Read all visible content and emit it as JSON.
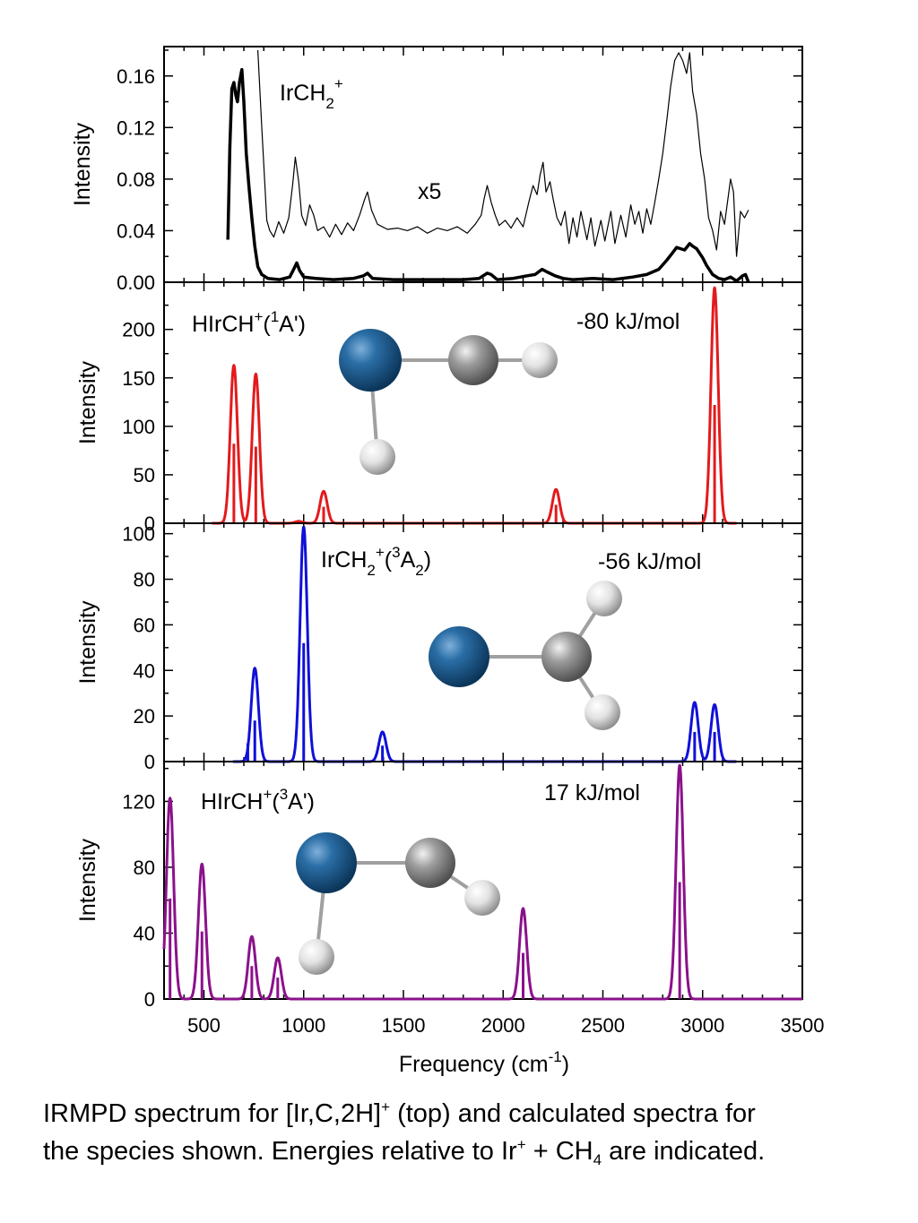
{
  "colors": {
    "top": "#000000",
    "p2": "#e31a1c",
    "p3": "#1010d8",
    "p4": "#8b118b",
    "ir": "#1b5c8f",
    "c": "#8c8c8c",
    "h": "#e6e6e6"
  },
  "chart_data": [
    {
      "type": "line",
      "panel": "top",
      "ylabel": "Intensity",
      "ylim": [
        0,
        0.18
      ],
      "yticks": [
        "0.00",
        "0.04",
        "0.08",
        "0.12",
        "0.16"
      ],
      "xlim": [
        300,
        3500
      ],
      "label": {
        "pre": "IrCH",
        "sub": "2",
        "sup": "+"
      },
      "x5_label": "x5",
      "series": [
        {
          "role": "spectrum",
          "points": [
            [
              620,
              0.033
            ],
            [
              630,
              0.105
            ],
            [
              640,
              0.15
            ],
            [
              650,
              0.155
            ],
            [
              660,
              0.145
            ],
            [
              668,
              0.14
            ],
            [
              678,
              0.155
            ],
            [
              690,
              0.165
            ],
            [
              700,
              0.14
            ],
            [
              712,
              0.1
            ],
            [
              725,
              0.075
            ],
            [
              740,
              0.05
            ],
            [
              755,
              0.028
            ],
            [
              770,
              0.012
            ],
            [
              790,
              0.006
            ],
            [
              820,
              0.003
            ],
            [
              880,
              0.002
            ],
            [
              930,
              0.004
            ],
            [
              950,
              0.01
            ],
            [
              965,
              0.015
            ],
            [
              980,
              0.009
            ],
            [
              1000,
              0.004
            ],
            [
              1060,
              0.003
            ],
            [
              1150,
              0.002
            ],
            [
              1250,
              0.003
            ],
            [
              1300,
              0.005
            ],
            [
              1320,
              0.007
            ],
            [
              1345,
              0.003
            ],
            [
              1450,
              0.002
            ],
            [
              1600,
              0.002
            ],
            [
              1800,
              0.002
            ],
            [
              1880,
              0.003
            ],
            [
              1920,
              0.007
            ],
            [
              1940,
              0.006
            ],
            [
              1970,
              0.002
            ],
            [
              2050,
              0.003
            ],
            [
              2120,
              0.005
            ],
            [
              2160,
              0.006
            ],
            [
              2195,
              0.01
            ],
            [
              2220,
              0.008
            ],
            [
              2260,
              0.005
            ],
            [
              2300,
              0.003
            ],
            [
              2350,
              0.002
            ],
            [
              2450,
              0.003
            ],
            [
              2550,
              0.002
            ],
            [
              2650,
              0.004
            ],
            [
              2720,
              0.006
            ],
            [
              2780,
              0.01
            ],
            [
              2820,
              0.017
            ],
            [
              2850,
              0.023
            ],
            [
              2870,
              0.027
            ],
            [
              2890,
              0.026
            ],
            [
              2910,
              0.025
            ],
            [
              2935,
              0.03
            ],
            [
              2950,
              0.028
            ],
            [
              2970,
              0.026
            ],
            [
              3000,
              0.019
            ],
            [
              3020,
              0.013
            ],
            [
              3050,
              0.006
            ],
            [
              3080,
              0.003
            ],
            [
              3110,
              0.002
            ],
            [
              3140,
              0.004
            ],
            [
              3170,
              0.001
            ],
            [
              3200,
              0.005
            ],
            [
              3215,
              0.006
            ],
            [
              3230,
              0.0
            ]
          ]
        },
        {
          "role": "x5",
          "points": [
            [
              770,
              0.18
            ],
            [
              790,
              0.12
            ],
            [
              815,
              0.048
            ],
            [
              830,
              0.04
            ],
            [
              850,
              0.035
            ],
            [
              875,
              0.047
            ],
            [
              900,
              0.038
            ],
            [
              925,
              0.05
            ],
            [
              945,
              0.076
            ],
            [
              958,
              0.097
            ],
            [
              975,
              0.078
            ],
            [
              990,
              0.052
            ],
            [
              1010,
              0.044
            ],
            [
              1030,
              0.06
            ],
            [
              1050,
              0.052
            ],
            [
              1070,
              0.04
            ],
            [
              1100,
              0.043
            ],
            [
              1130,
              0.035
            ],
            [
              1160,
              0.045
            ],
            [
              1190,
              0.037
            ],
            [
              1220,
              0.046
            ],
            [
              1250,
              0.04
            ],
            [
              1280,
              0.052
            ],
            [
              1305,
              0.064
            ],
            [
              1320,
              0.07
            ],
            [
              1340,
              0.056
            ],
            [
              1370,
              0.045
            ],
            [
              1420,
              0.041
            ],
            [
              1470,
              0.042
            ],
            [
              1520,
              0.04
            ],
            [
              1570,
              0.043
            ],
            [
              1620,
              0.038
            ],
            [
              1670,
              0.042
            ],
            [
              1720,
              0.04
            ],
            [
              1770,
              0.043
            ],
            [
              1820,
              0.038
            ],
            [
              1860,
              0.045
            ],
            [
              1890,
              0.052
            ],
            [
              1905,
              0.065
            ],
            [
              1920,
              0.075
            ],
            [
              1940,
              0.062
            ],
            [
              1960,
              0.052
            ],
            [
              1980,
              0.044
            ],
            [
              2010,
              0.048
            ],
            [
              2040,
              0.042
            ],
            [
              2070,
              0.05
            ],
            [
              2100,
              0.043
            ],
            [
              2130,
              0.063
            ],
            [
              2150,
              0.075
            ],
            [
              2170,
              0.068
            ],
            [
              2185,
              0.083
            ],
            [
              2200,
              0.093
            ],
            [
              2215,
              0.07
            ],
            [
              2235,
              0.078
            ],
            [
              2250,
              0.065
            ],
            [
              2270,
              0.05
            ],
            [
              2290,
              0.044
            ],
            [
              2310,
              0.055
            ],
            [
              2330,
              0.03
            ],
            [
              2350,
              0.05
            ],
            [
              2370,
              0.035
            ],
            [
              2390,
              0.055
            ],
            [
              2420,
              0.033
            ],
            [
              2440,
              0.05
            ],
            [
              2460,
              0.028
            ],
            [
              2490,
              0.048
            ],
            [
              2510,
              0.032
            ],
            [
              2540,
              0.055
            ],
            [
              2560,
              0.03
            ],
            [
              2590,
              0.052
            ],
            [
              2615,
              0.035
            ],
            [
              2640,
              0.06
            ],
            [
              2660,
              0.045
            ],
            [
              2680,
              0.055
            ],
            [
              2700,
              0.038
            ],
            [
              2720,
              0.057
            ],
            [
              2740,
              0.045
            ],
            [
              2760,
              0.062
            ],
            [
              2780,
              0.08
            ],
            [
              2800,
              0.1
            ],
            [
              2820,
              0.125
            ],
            [
              2840,
              0.152
            ],
            [
              2860,
              0.172
            ],
            [
              2880,
              0.178
            ],
            [
              2900,
              0.172
            ],
            [
              2920,
              0.162
            ],
            [
              2935,
              0.178
            ],
            [
              2950,
              0.148
            ],
            [
              2970,
              0.13
            ],
            [
              2990,
              0.1
            ],
            [
              3010,
              0.08
            ],
            [
              3030,
              0.05
            ],
            [
              3050,
              0.04
            ],
            [
              3070,
              0.025
            ],
            [
              3090,
              0.055
            ],
            [
              3110,
              0.045
            ],
            [
              3140,
              0.08
            ],
            [
              3155,
              0.07
            ],
            [
              3170,
              0.02
            ],
            [
              3190,
              0.055
            ],
            [
              3210,
              0.05
            ],
            [
              3230,
              0.056
            ]
          ]
        }
      ]
    },
    {
      "type": "line",
      "panel": "HIrCH+ (1A')",
      "ylabel": "Intensity",
      "ylim": [
        0,
        245
      ],
      "yticks": [
        "0",
        "50",
        "100",
        "150",
        "200"
      ],
      "label": {
        "pre": "HIrCH",
        "sup1": "+",
        "mid": "(",
        "sup2": "1",
        "post": "A')"
      },
      "energy": "-80 kJ/mol",
      "peaks": [
        [
          650,
          163,
          82
        ],
        [
          760,
          154,
          79
        ],
        [
          1100,
          33,
          17
        ],
        [
          2265,
          35,
          19
        ],
        [
          3060,
          243,
          122
        ]
      ],
      "small_bump": [
        975,
        2
      ]
    },
    {
      "type": "line",
      "panel": "IrCH2+ (3A2)",
      "ylabel": "Intensity",
      "ylim": [
        0,
        103
      ],
      "yticks": [
        "0",
        "20",
        "40",
        "60",
        "80",
        "100"
      ],
      "label": {
        "pre": "IrCH",
        "sub1": "2",
        "sup1": "+",
        "mid": "(",
        "sup2": "3",
        "post": "A",
        "sub2": "2",
        "end": ")"
      },
      "energy": "-56 kJ/mol",
      "peaks": [
        [
          755,
          41,
          18
        ],
        [
          1000,
          103,
          52
        ],
        [
          1395,
          13,
          7
        ],
        [
          2960,
          26,
          13
        ],
        [
          3060,
          25,
          13
        ]
      ],
      "extra_sticks": [
        [
          720,
          8
        ]
      ]
    },
    {
      "type": "line",
      "panel": "HIrCH+ (3A')",
      "ylabel": "Intensity",
      "ylim": [
        0,
        142
      ],
      "yticks": [
        "0",
        "40",
        "80",
        "120"
      ],
      "xlabel": {
        "pre": "Frequency (cm",
        "sup": "-1",
        "post": ")"
      },
      "xticks": [
        "500",
        "1000",
        "1500",
        "2000",
        "2500",
        "3000",
        "3500"
      ],
      "label": {
        "pre": "HIrCH",
        "sup1": "+",
        "mid": "(",
        "sup2": "3",
        "post": "A')"
      },
      "energy": "17 kJ/mol",
      "peaks": [
        [
          330,
          122,
          61
        ],
        [
          490,
          82,
          41
        ],
        [
          740,
          38,
          20
        ],
        [
          870,
          25,
          13
        ],
        [
          2100,
          55,
          28
        ],
        [
          2885,
          142,
          71
        ]
      ]
    }
  ],
  "caption": {
    "line1_a": "IRMPD spectrum for [Ir,C,2H]",
    "line1_sup": "+",
    "line1_b": " (top) and calculated spectra for",
    "line2_a": "the species shown.   Energies relative to Ir",
    "line2_sup": "+",
    "line2_b": " + CH",
    "line2_sub": "4",
    "line2_c": " are indicated."
  }
}
